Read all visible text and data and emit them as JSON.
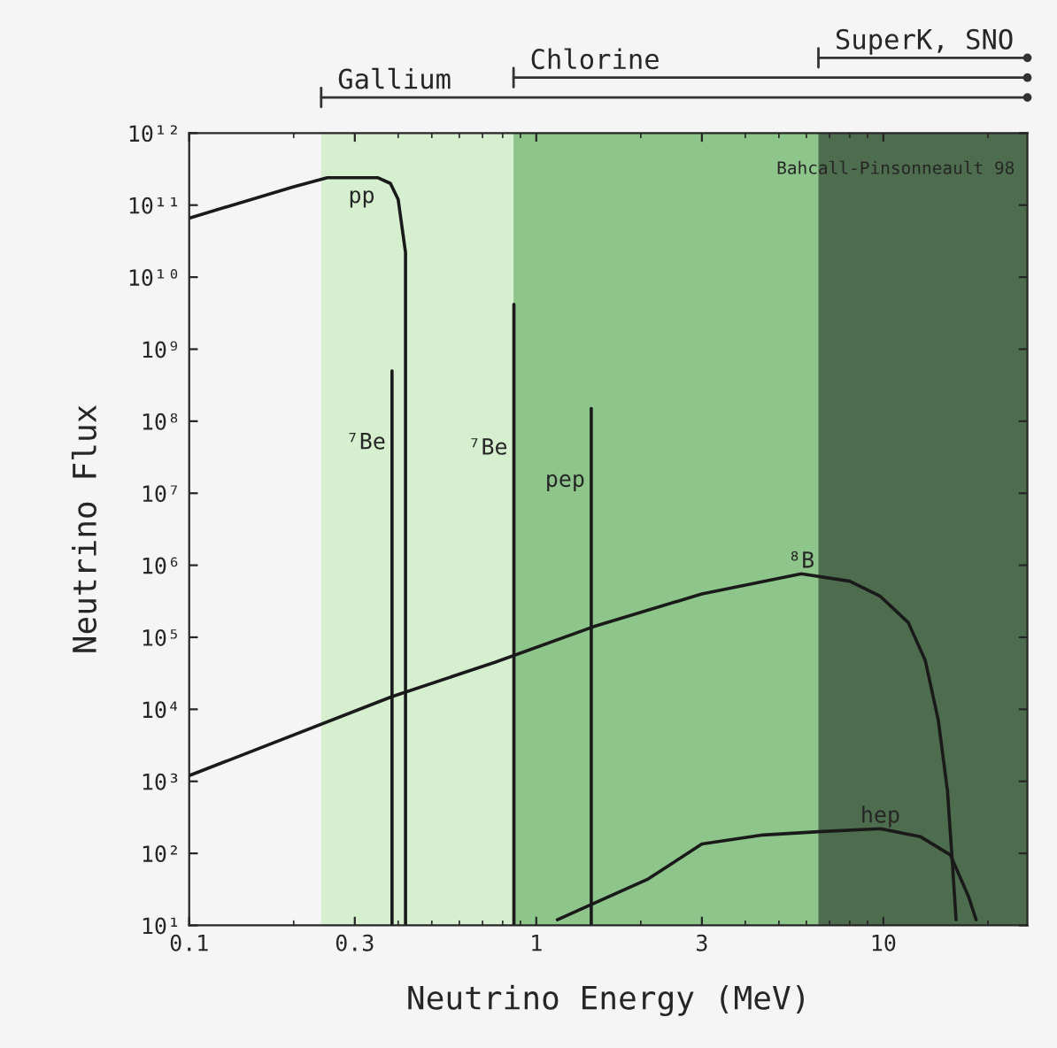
{
  "chart_data": {
    "type": "line",
    "xlabel": "Neutrino Energy (MeV)",
    "ylabel": "Neutrino Flux",
    "log": "xy",
    "xlim": [
      0.1,
      26
    ],
    "xticks": [
      0.1,
      0.3,
      1,
      3,
      10
    ],
    "ylim": [
      10,
      1000000000000.0
    ],
    "yticks": [
      {
        "value": 10,
        "label": "10¹"
      },
      {
        "value": 100,
        "label": "10²"
      },
      {
        "value": 1000,
        "label": "10³"
      },
      {
        "value": 10000,
        "label": "10⁴"
      },
      {
        "value": 100000,
        "label": "10⁵"
      },
      {
        "value": 1000000,
        "label": "10⁶"
      },
      {
        "value": 10000000,
        "label": "10⁷"
      },
      {
        "value": 100000000,
        "label": "10⁸"
      },
      {
        "value": 1000000000,
        "label": "10⁹"
      },
      {
        "value": 10000000000,
        "label": "10¹⁰"
      },
      {
        "value": 100000000000,
        "label": "10¹¹"
      },
      {
        "value": 1000000000000,
        "label": "10¹²"
      }
    ],
    "grid": false,
    "legend": false,
    "marker": "none",
    "line_style": "solid",
    "bands": [
      {
        "axis": "x",
        "from": 0.24,
        "to": 26,
        "label": "Gallium",
        "color": "#d5efcf"
      },
      {
        "axis": "x",
        "from": 0.86,
        "to": 26,
        "label": "Chlorine",
        "color": "#8dc58b"
      },
      {
        "axis": "x",
        "from": 6.5,
        "to": 26,
        "label": "SuperK, SNO",
        "color": "#4e6d4e"
      }
    ],
    "annotations": [
      "Bahcall-Pinsonneault 98"
    ],
    "series": [
      {
        "name": "pp",
        "color": "#1a1a1a",
        "x": [
          0.1,
          0.2,
          0.25,
          0.35,
          0.38,
          0.4,
          0.42,
          0.42
        ],
        "values": [
          66000000000.0,
          180000000000.0,
          240000000000.0,
          240000000000.0,
          200000000000.0,
          120000000000.0,
          22000000000.0,
          10
        ]
      },
      {
        "name": "⁷Be",
        "color": "#1a1a1a",
        "x": [
          0.384,
          0.384
        ],
        "values": [
          10,
          500000000.0
        ]
      },
      {
        "name": "⁷Be",
        "color": "#1a1a1a",
        "x": [
          0.862,
          0.862
        ],
        "values": [
          10,
          4200000000.0
        ]
      },
      {
        "name": "pep",
        "color": "#1a1a1a",
        "x": [
          1.44,
          1.44
        ],
        "values": [
          10,
          150000000.0
        ]
      },
      {
        "name": "⁸B",
        "color": "#1a1a1a",
        "x": [
          0.1,
          0.384,
          0.76,
          1.46,
          3.0,
          5.8,
          8.0,
          9.8,
          11.8,
          13.2,
          14.4,
          15.3,
          15.8,
          16.2
        ],
        "values": [
          1200,
          15000,
          45000,
          140000,
          400000,
          760000,
          600000,
          370000,
          160000,
          48000,
          7000,
          740,
          76,
          12
        ]
      },
      {
        "name": "hep",
        "color": "#1a1a1a",
        "x": [
          1.15,
          2.1,
          3.0,
          4.5,
          6.5,
          9.8,
          12.8,
          15.6,
          17.6,
          18.5
        ],
        "values": [
          12,
          44,
          135,
          180,
          200,
          220,
          170,
          95,
          25,
          12
        ]
      }
    ]
  }
}
